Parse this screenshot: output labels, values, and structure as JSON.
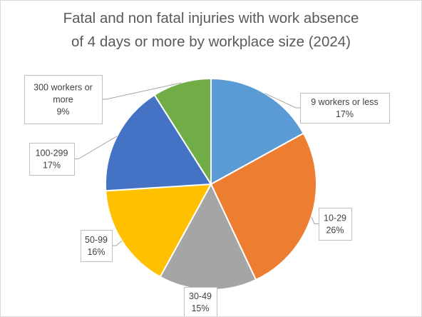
{
  "chart_data": {
    "type": "pie",
    "title_lines": [
      "Fatal and non fatal injuries with work absence",
      "of 4 days or more by workplace size (2024)"
    ],
    "slices": [
      {
        "label": "9 workers or less",
        "label_lines": [
          "9 workers or less"
        ],
        "value": 17,
        "value_label": "17%",
        "color": "#5b9bd5"
      },
      {
        "label": "10-29",
        "label_lines": [
          "10-29"
        ],
        "value": 26,
        "value_label": "26%",
        "color": "#ed7d31"
      },
      {
        "label": "30-49",
        "label_lines": [
          "30-49"
        ],
        "value": 15,
        "value_label": "15%",
        "color": "#a5a5a5"
      },
      {
        "label": "50-99",
        "label_lines": [
          "50-99"
        ],
        "value": 16,
        "value_label": "16%",
        "color": "#ffc000"
      },
      {
        "label": "100-299",
        "label_lines": [
          "100-299"
        ],
        "value": 17,
        "value_label": "17%",
        "color": "#4472c4"
      },
      {
        "label": "300 workers or more",
        "label_lines": [
          "300 workers or",
          "more"
        ],
        "value": 9,
        "value_label": "9%",
        "color": "#70ad47"
      }
    ],
    "legend": "none",
    "data_labels": "outside with leader lines"
  }
}
